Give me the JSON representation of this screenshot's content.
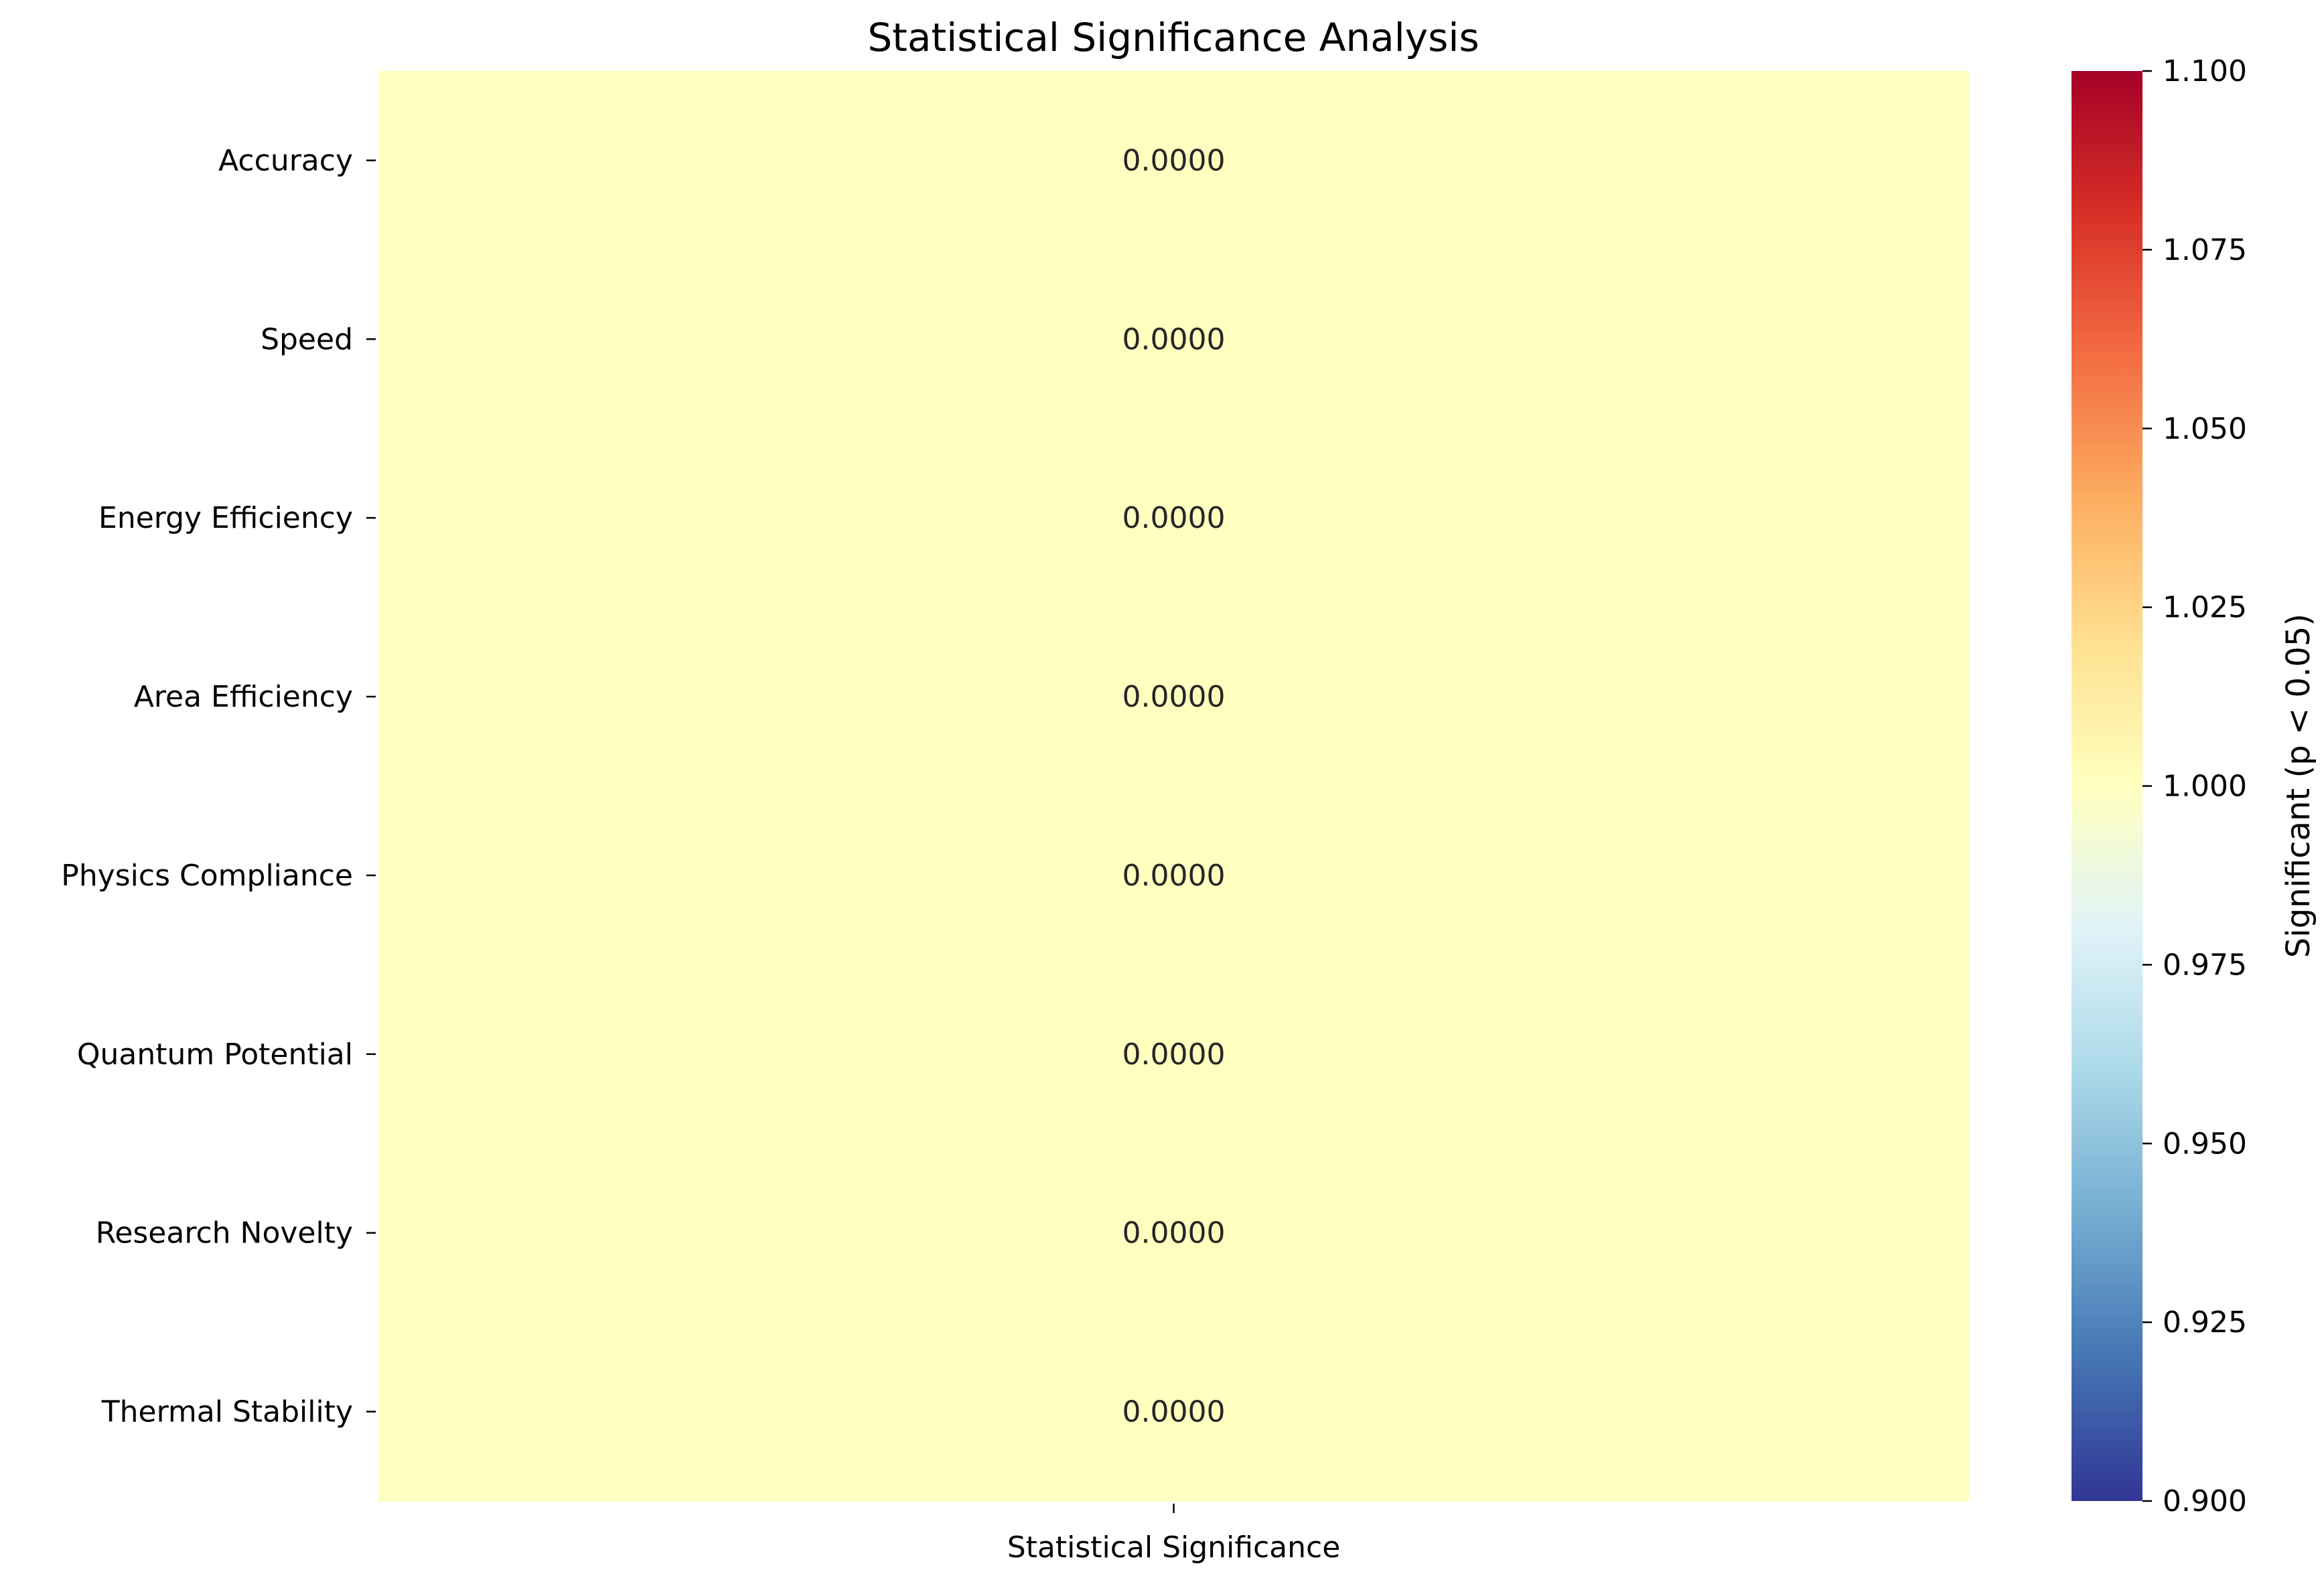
{
  "chart_data": {
    "type": "heatmap",
    "title": "Statistical Significance Analysis",
    "rows": [
      "Accuracy",
      "Speed",
      "Energy Efficiency",
      "Area Efficiency",
      "Physics Compliance",
      "Quantum Potential",
      "Research Novelty",
      "Thermal Stability"
    ],
    "columns": [
      "Statistical Significance"
    ],
    "values": [
      [
        1
      ],
      [
        1
      ],
      [
        1
      ],
      [
        1
      ],
      [
        1
      ],
      [
        1
      ],
      [
        1
      ],
      [
        1
      ]
    ],
    "annotations": [
      [
        "0.0000"
      ],
      [
        "0.0000"
      ],
      [
        "0.0000"
      ],
      [
        "0.0000"
      ],
      [
        "0.0000"
      ],
      [
        "0.0000"
      ],
      [
        "0.0000"
      ],
      [
        "0.0000"
      ]
    ],
    "colorbar": {
      "label": "Significant (p < 0.05)",
      "range": [
        0.9,
        1.1
      ],
      "ticks": [
        "0.900",
        "0.925",
        "0.950",
        "0.975",
        "1.000",
        "1.025",
        "1.050",
        "1.075",
        "1.100"
      ],
      "colormap": "RdYlBu_r"
    },
    "cell_color": "#ffffbf"
  }
}
